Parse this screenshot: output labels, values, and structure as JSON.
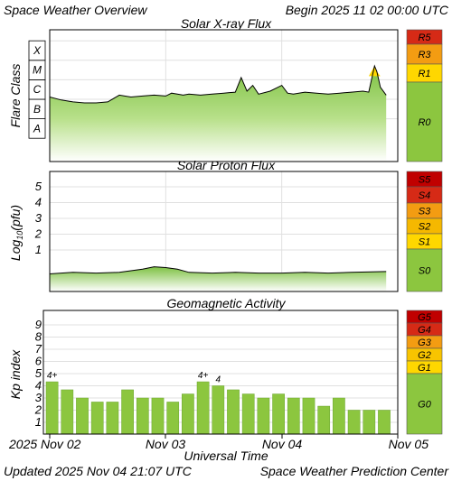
{
  "header": {
    "title": "Space Weather Overview",
    "begin": "Begin 2025 11 02 00:00 UTC"
  },
  "footer": {
    "updated": "Updated 2025 Nov 04 21:07 UTC",
    "source": "Space Weather Prediction Center"
  },
  "time_axis": {
    "label": "Universal Time",
    "ticks": [
      "2025 Nov 02",
      "Nov 03",
      "Nov 04",
      "Nov 05"
    ]
  },
  "colors": {
    "green": "#8cc63f",
    "yellow": "#ffd700",
    "orange": "#f39c12",
    "red": "#d62a16",
    "dark_red": "#c00000",
    "grid": "#e0e0e0"
  },
  "chart_data": [
    {
      "type": "area",
      "title": "Solar X-ray Flux",
      "ylabel": "Flare Class",
      "y_ticks": [
        "A",
        "B",
        "C",
        "M",
        "X"
      ],
      "scale_labels": [
        "R5",
        "R3",
        "R1",
        "R0"
      ],
      "series": [
        {
          "x": [
            0.0,
            0.1,
            0.2,
            0.3,
            0.4,
            0.5,
            0.6,
            0.7,
            0.8,
            0.9,
            1.0,
            1.05,
            1.1,
            1.15,
            1.2,
            1.3,
            1.4,
            1.5,
            1.6,
            1.65,
            1.7,
            1.75,
            1.8,
            1.9,
            2.0,
            2.05,
            2.1,
            2.2,
            2.3,
            2.4,
            2.5,
            2.6,
            2.7,
            2.75,
            2.8,
            2.82,
            2.85,
            2.9
          ],
          "y": [
            2.3,
            2.15,
            2.05,
            2.0,
            2.0,
            2.05,
            2.4,
            2.3,
            2.35,
            2.4,
            2.35,
            2.5,
            2.45,
            2.4,
            2.45,
            2.4,
            2.45,
            2.5,
            2.55,
            3.3,
            2.6,
            2.9,
            2.45,
            2.6,
            2.9,
            2.5,
            2.45,
            2.55,
            2.5,
            2.45,
            2.5,
            2.55,
            2.6,
            2.55,
            3.9,
            3.6,
            2.8,
            2.4
          ]
        }
      ]
    },
    {
      "type": "area",
      "title": "Solar Proton Flux",
      "ylabel": "Log10(pfu)",
      "y_ticks": [
        "1",
        "2",
        "3",
        "4",
        "5"
      ],
      "scale_labels": [
        "S5",
        "S4",
        "S3",
        "S2",
        "S1",
        "S0"
      ],
      "series": [
        {
          "x": [
            0.0,
            0.2,
            0.4,
            0.6,
            0.8,
            0.9,
            1.0,
            1.1,
            1.2,
            1.4,
            1.6,
            1.8,
            2.0,
            2.2,
            2.4,
            2.6,
            2.9
          ],
          "y": [
            -0.4,
            -0.3,
            -0.35,
            -0.3,
            -0.1,
            0.05,
            0.0,
            -0.1,
            -0.3,
            -0.35,
            -0.3,
            -0.35,
            -0.35,
            -0.3,
            -0.35,
            -0.3,
            -0.25
          ]
        }
      ]
    },
    {
      "type": "bar",
      "title": "Geomagnetic Activity",
      "ylabel": "Kp index",
      "y_ticks": [
        "1",
        "2",
        "3",
        "4",
        "5",
        "6",
        "7",
        "8",
        "9"
      ],
      "scale_labels": [
        "G5",
        "G4",
        "G3",
        "G2",
        "G1",
        "G0"
      ],
      "values": [
        4.33,
        3.67,
        3.0,
        2.67,
        2.67,
        3.67,
        3.0,
        3.0,
        2.67,
        3.33,
        4.33,
        4.0,
        3.67,
        3.33,
        3.0,
        3.33,
        3.0,
        3.0,
        2.33,
        3.0,
        2.0,
        2.0,
        2.0
      ],
      "bar_labels": [
        {
          "index": 0,
          "text": "4+"
        },
        {
          "index": 10,
          "text": "4+"
        },
        {
          "index": 11,
          "text": "4"
        }
      ]
    }
  ]
}
